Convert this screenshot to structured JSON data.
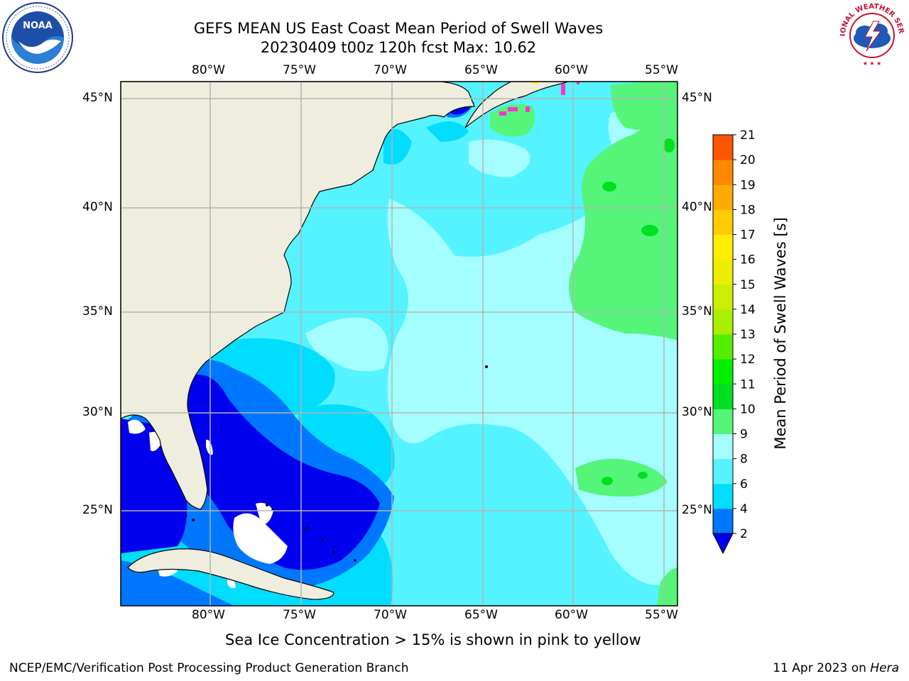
{
  "title": {
    "line1": "GEFS MEAN US East Coast Mean Period of Swell Waves",
    "line2": "20230409 t00z 120h fcst   Max: 10.62"
  },
  "logos": {
    "left": {
      "icon": "noaa-logo-icon",
      "text": "NOAA"
    },
    "right": {
      "icon": "national-weather-service-logo-icon",
      "text": "NATIONAL WEATHER SERVICE"
    }
  },
  "map": {
    "lon_labels": [
      "80°W",
      "75°W",
      "70°W",
      "65°W",
      "60°W",
      "55°W"
    ],
    "lat_labels": [
      "45°N",
      "40°N",
      "35°N",
      "30°N",
      "25°N"
    ],
    "colors": {
      "land": "#efedde",
      "grid": "#b4b4b4",
      "missing": "#ffffff",
      "sea_ice": "#ff33cc"
    }
  },
  "colorbar": {
    "label": "Mean Period of Swell Waves [s]",
    "ticks": [
      "2",
      "4",
      "6",
      "8",
      "9",
      "10",
      "11",
      "12",
      "13",
      "14",
      "15",
      "16",
      "17",
      "18",
      "19",
      "20",
      "21"
    ],
    "colors": [
      "#0000ee",
      "#0077ff",
      "#00ddff",
      "#55f3ff",
      "#a4fdff",
      "#55f57a",
      "#00e020",
      "#00f000",
      "#55ee00",
      "#aaee00",
      "#ccee00",
      "#eeee00",
      "#ffee00",
      "#ffcc00",
      "#ffaa00",
      "#ff8800",
      "#ff5500",
      "#ff2a00",
      "#ff0000"
    ]
  },
  "note": "Sea Ice Concentration > 15% is shown in pink to yellow",
  "footer": {
    "left": "NCEP/EMC/Verification Post Processing Product Generation Branch",
    "date": "11 Apr 2023 on ",
    "machine": "Hera"
  }
}
